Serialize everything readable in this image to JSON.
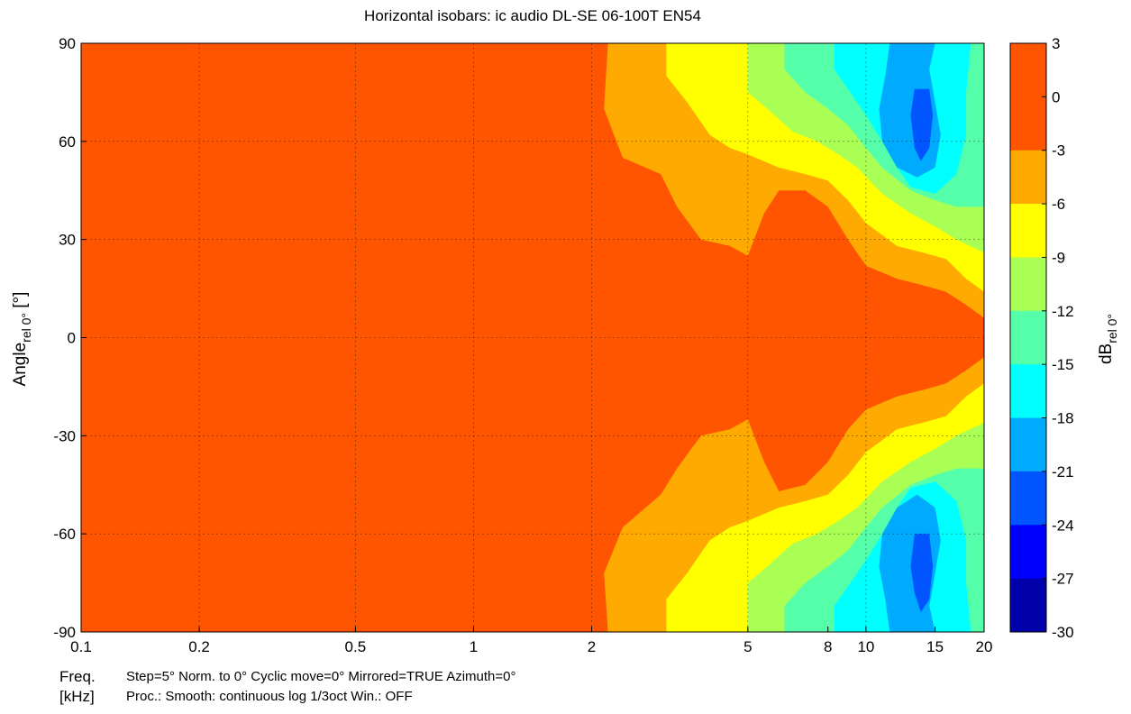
{
  "chart_data": {
    "type": "heatmap",
    "title": "Horizontal isobars: ic audio  DL-SE 06-100T EN54",
    "xlabel_line1": "Freq.",
    "xlabel_line2": "[kHz]",
    "ylabel_main": "Angle",
    "ylabel_sub": "rel 0°",
    "ylabel_unit": " [°]",
    "colorbar_label_main": "dB",
    "colorbar_label_sub": "rel 0°",
    "x_scale": "log",
    "xlim": [
      0.1,
      20
    ],
    "ylim": [
      -90,
      90
    ],
    "x_ticks": [
      0.1,
      0.2,
      0.5,
      1,
      2,
      5,
      8,
      10,
      15,
      20
    ],
    "x_tick_labels": [
      "0.1",
      "0.2",
      "0.5",
      "1",
      "2",
      "5",
      "8",
      "10",
      "15",
      "20"
    ],
    "y_ticks": [
      90,
      60,
      30,
      0,
      -30,
      -60,
      -90
    ],
    "y_tick_labels": [
      "90",
      "60",
      "30",
      "0",
      "-30",
      "-60",
      "-90"
    ],
    "grid": true,
    "colorbar_ticks": [
      3,
      0,
      -3,
      -6,
      -9,
      -12,
      -15,
      -18,
      -21,
      -24,
      -27,
      -30
    ],
    "colorbar_tick_labels": [
      "3",
      "0",
      "-3",
      "-6",
      "-9",
      "-12",
      "-15",
      "-18",
      "-21",
      "-24",
      "-27",
      "-30"
    ],
    "colorbar_bins": [
      {
        "range": [
          0,
          3
        ],
        "color": "#ff5500"
      },
      {
        "range": [
          -3,
          0
        ],
        "color": "#ff5500"
      },
      {
        "range": [
          -6,
          -3
        ],
        "color": "#ffaa00"
      },
      {
        "range": [
          -9,
          -6
        ],
        "color": "#ffff00"
      },
      {
        "range": [
          -12,
          -9
        ],
        "color": "#aaff55"
      },
      {
        "range": [
          -15,
          -12
        ],
        "color": "#55ffaa"
      },
      {
        "range": [
          -18,
          -15
        ],
        "color": "#00ffff"
      },
      {
        "range": [
          -21,
          -18
        ],
        "color": "#00aaff"
      },
      {
        "range": [
          -24,
          -21
        ],
        "color": "#0055ff"
      },
      {
        "range": [
          -27,
          -24
        ],
        "color": "#0000ff"
      },
      {
        "range": [
          -30,
          -27
        ],
        "color": "#0000aa"
      }
    ],
    "contours": [
      {
        "level": -3,
        "color": "#ffaa00",
        "boundary_top": [
          [
            2.2,
            90
          ],
          [
            2.15,
            70
          ],
          [
            2.4,
            55
          ],
          [
            3.0,
            50
          ],
          [
            3.3,
            40
          ],
          [
            3.8,
            30
          ],
          [
            4.5,
            28
          ],
          [
            5.0,
            25
          ],
          [
            5.5,
            38
          ],
          [
            6.0,
            45
          ],
          [
            7.0,
            45
          ],
          [
            8.0,
            40
          ],
          [
            9.0,
            30
          ],
          [
            10,
            22
          ],
          [
            12,
            18
          ],
          [
            14,
            16
          ],
          [
            16,
            14
          ],
          [
            18,
            10
          ],
          [
            20,
            6
          ]
        ],
        "boundary_bottom": [
          [
            20,
            -6
          ],
          [
            18,
            -10
          ],
          [
            16,
            -14
          ],
          [
            14,
            -16
          ],
          [
            12,
            -18
          ],
          [
            10,
            -22
          ],
          [
            9.0,
            -28
          ],
          [
            8.0,
            -38
          ],
          [
            7.0,
            -45
          ],
          [
            6.0,
            -47
          ],
          [
            5.5,
            -38
          ],
          [
            5.0,
            -25
          ],
          [
            4.5,
            -28
          ],
          [
            3.8,
            -30
          ],
          [
            3.3,
            -40
          ],
          [
            3.0,
            -48
          ],
          [
            2.4,
            -58
          ],
          [
            2.15,
            -72
          ],
          [
            2.2,
            -90
          ]
        ]
      },
      {
        "level": -6,
        "color": "#ffff00",
        "boundary_top": [
          [
            3.1,
            90
          ],
          [
            3.1,
            80
          ],
          [
            3.5,
            72
          ],
          [
            4.0,
            62
          ],
          [
            4.5,
            58
          ],
          [
            5.0,
            56
          ],
          [
            6.0,
            52
          ],
          [
            7.0,
            50
          ],
          [
            8.0,
            48
          ],
          [
            9.0,
            42
          ],
          [
            10,
            35
          ],
          [
            12,
            28
          ],
          [
            14,
            26
          ],
          [
            16,
            24
          ],
          [
            18,
            18
          ],
          [
            20,
            14
          ]
        ],
        "boundary_bottom": [
          [
            20,
            -14
          ],
          [
            18,
            -18
          ],
          [
            16,
            -24
          ],
          [
            14,
            -26
          ],
          [
            12,
            -28
          ],
          [
            10,
            -35
          ],
          [
            9.0,
            -42
          ],
          [
            8.0,
            -48
          ],
          [
            7.0,
            -50
          ],
          [
            6.0,
            -52
          ],
          [
            5.0,
            -56
          ],
          [
            4.5,
            -58
          ],
          [
            4.0,
            -62
          ],
          [
            3.5,
            -72
          ],
          [
            3.1,
            -80
          ],
          [
            3.1,
            -90
          ]
        ]
      },
      {
        "level": -9,
        "color": "#aaff55",
        "boundary_top": [
          [
            5.0,
            90
          ],
          [
            5.0,
            75
          ],
          [
            5.6,
            70
          ],
          [
            6.5,
            63
          ],
          [
            7.5,
            60
          ],
          [
            8.5,
            56
          ],
          [
            9.5,
            52
          ],
          [
            11,
            44
          ],
          [
            13,
            38
          ],
          [
            15,
            34
          ],
          [
            17,
            30
          ],
          [
            20,
            26
          ]
        ],
        "boundary_bottom": [
          [
            20,
            -26
          ],
          [
            17,
            -30
          ],
          [
            15,
            -34
          ],
          [
            13,
            -38
          ],
          [
            11,
            -44
          ],
          [
            9.5,
            -52
          ],
          [
            8.5,
            -56
          ],
          [
            7.5,
            -60
          ],
          [
            6.5,
            -63
          ],
          [
            5.6,
            -70
          ],
          [
            5.0,
            -75
          ],
          [
            5.0,
            -90
          ]
        ]
      },
      {
        "level": -12,
        "color": "#55ffaa",
        "boundary_top": [
          [
            6.2,
            90
          ],
          [
            6.2,
            82
          ],
          [
            7.0,
            75
          ],
          [
            8.0,
            70
          ],
          [
            9.0,
            65
          ],
          [
            10,
            58
          ],
          [
            11,
            52
          ],
          [
            13,
            45
          ],
          [
            15,
            42
          ],
          [
            17,
            40
          ],
          [
            20,
            40
          ]
        ],
        "boundary_bottom": [
          [
            20,
            -40
          ],
          [
            17,
            -40
          ],
          [
            15,
            -42
          ],
          [
            13,
            -45
          ],
          [
            11,
            -52
          ],
          [
            10,
            -58
          ],
          [
            9.0,
            -65
          ],
          [
            8.0,
            -70
          ],
          [
            7.0,
            -75
          ],
          [
            6.2,
            -82
          ],
          [
            6.2,
            -90
          ]
        ]
      },
      {
        "level": -15,
        "color": "#00ffff",
        "boundary_top": [
          [
            8.3,
            90
          ],
          [
            8.3,
            82
          ],
          [
            9.0,
            76
          ],
          [
            10,
            68
          ],
          [
            11,
            60
          ],
          [
            12,
            52
          ],
          [
            13,
            46
          ],
          [
            15,
            44
          ],
          [
            17,
            50
          ],
          [
            18,
            62
          ],
          [
            18,
            75
          ],
          [
            18.5,
            90
          ]
        ],
        "boundary_bottom": [
          [
            18.5,
            -90
          ],
          [
            18,
            -75
          ],
          [
            18,
            -62
          ],
          [
            17,
            -50
          ],
          [
            15,
            -44
          ],
          [
            13,
            -46
          ],
          [
            12,
            -52
          ],
          [
            11,
            -60
          ],
          [
            10,
            -68
          ],
          [
            9.0,
            -76
          ],
          [
            8.3,
            -82
          ],
          [
            8.3,
            -90
          ]
        ]
      },
      {
        "level": -18,
        "color": "#00aaff",
        "boundary_top": [
          [
            11.5,
            90
          ],
          [
            11.2,
            80
          ],
          [
            10.8,
            70
          ],
          [
            11,
            60
          ],
          [
            12,
            52
          ],
          [
            13.5,
            49
          ],
          [
            15,
            52
          ],
          [
            15.5,
            62
          ],
          [
            15,
            72
          ],
          [
            14.5,
            82
          ],
          [
            15,
            90
          ]
        ],
        "boundary_bottom": [
          [
            15,
            -90
          ],
          [
            14.5,
            -82
          ],
          [
            15,
            -72
          ],
          [
            15.5,
            -62
          ],
          [
            15,
            -52
          ],
          [
            13.5,
            -48
          ],
          [
            12,
            -52
          ],
          [
            11,
            -60
          ],
          [
            10.8,
            -70
          ],
          [
            11.2,
            -80
          ],
          [
            11.5,
            -90
          ]
        ]
      },
      {
        "level": -21,
        "color": "#0055ff",
        "boundary_top": [
          [
            13.3,
            76
          ],
          [
            13.0,
            68
          ],
          [
            13.3,
            58
          ],
          [
            13.8,
            54
          ],
          [
            14.5,
            58
          ],
          [
            14.8,
            68
          ],
          [
            14.5,
            76
          ]
        ],
        "boundary_bottom": [
          [
            14.5,
            -60
          ],
          [
            14.8,
            -70
          ],
          [
            14.5,
            -80
          ],
          [
            13.8,
            -84
          ],
          [
            13.3,
            -78
          ],
          [
            13.0,
            -70
          ],
          [
            13.3,
            -60
          ]
        ]
      }
    ],
    "annotations": {
      "settings_line1": "Step=5°   Norm. to 0°   Cyclic move=0°   Mirrored=TRUE   Azimuth=0°",
      "settings_line2": "Proc.: Smooth: continuous log 1/3oct   Win.: OFF"
    }
  }
}
